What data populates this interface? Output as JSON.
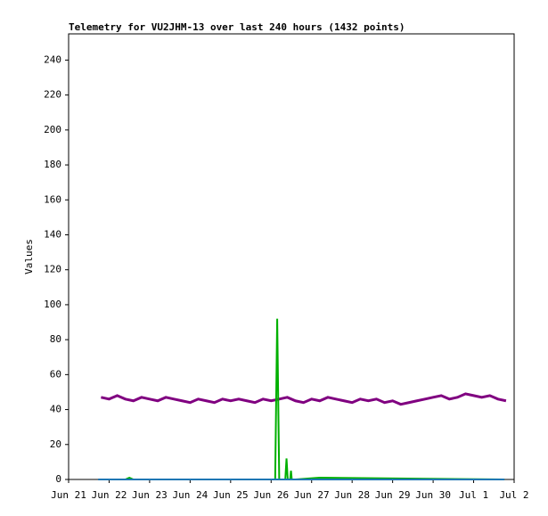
{
  "chart_data": {
    "type": "line",
    "title": "Telemetry for VU2JHM-13 over last 240 hours (1432 points)",
    "y_label": "Values",
    "xlim": [
      0,
      11
    ],
    "xticks": [
      {
        "value": 0,
        "label": "Jun 21"
      },
      {
        "value": 1,
        "label": "Jun 22"
      },
      {
        "value": 2,
        "label": "Jun 23"
      },
      {
        "value": 3,
        "label": "Jun 24"
      },
      {
        "value": 4,
        "label": "Jun 25"
      },
      {
        "value": 5,
        "label": "Jun 26"
      },
      {
        "value": 6,
        "label": "Jun 27"
      },
      {
        "value": 7,
        "label": "Jun 28"
      },
      {
        "value": 8,
        "label": "Jun 29"
      },
      {
        "value": 9,
        "label": "Jun 30"
      },
      {
        "value": 10,
        "label": "Jul 1"
      },
      {
        "value": 11,
        "label": "Jul 2"
      }
    ],
    "ylim": [
      0,
      255
    ],
    "yticks": [
      0,
      20,
      40,
      60,
      80,
      100,
      120,
      140,
      160,
      180,
      200,
      220,
      240
    ],
    "grid": false,
    "series": [
      {
        "color": "#800080",
        "x": [
          0.8,
          1.0,
          1.2,
          1.4,
          1.6,
          1.8,
          2.0,
          2.2,
          2.4,
          2.6,
          2.8,
          3.0,
          3.2,
          3.4,
          3.6,
          3.8,
          4.0,
          4.2,
          4.4,
          4.6,
          4.8,
          5.0,
          5.2,
          5.4,
          5.6,
          5.8,
          6.0,
          6.2,
          6.4,
          6.6,
          6.8,
          7.0,
          7.2,
          7.4,
          7.6,
          7.8,
          8.0,
          8.2,
          8.4,
          8.6,
          8.8,
          9.0,
          9.2,
          9.4,
          9.6,
          9.8,
          10.0,
          10.2,
          10.4,
          10.6,
          10.8
        ],
        "values": [
          47,
          46,
          48,
          46,
          45,
          47,
          46,
          45,
          47,
          46,
          45,
          44,
          46,
          45,
          44,
          46,
          45,
          46,
          45,
          44,
          46,
          45,
          46,
          47,
          45,
          44,
          46,
          45,
          47,
          46,
          45,
          44,
          46,
          45,
          46,
          44,
          45,
          43,
          44,
          45,
          46,
          47,
          48,
          46,
          47,
          49,
          48,
          47,
          48,
          46,
          45
        ]
      },
      {
        "color": "#00b000",
        "x": [
          0.8,
          1.4,
          1.5,
          1.6,
          5.1,
          5.15,
          5.2,
          5.35,
          5.38,
          5.41,
          5.47,
          5.49,
          5.51,
          5.6,
          6.2,
          10.76
        ],
        "values": [
          0,
          0,
          1,
          0,
          0,
          92,
          0,
          0,
          12,
          0,
          0,
          5,
          0,
          0,
          1,
          0
        ]
      },
      {
        "color": "#1f77b4",
        "x": [
          0.73,
          10.76
        ],
        "values": [
          0,
          0
        ]
      }
    ]
  }
}
